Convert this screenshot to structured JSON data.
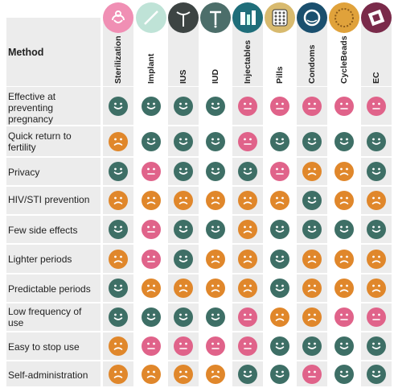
{
  "header": {
    "method_label": "Method"
  },
  "methods": [
    {
      "label": "Sterilization",
      "icon": "sterilization-icon",
      "icon_bg": "#f08fb4"
    },
    {
      "label": "Implant",
      "icon": "implant-icon",
      "icon_bg": "#bfe3d7"
    },
    {
      "label": "IUS",
      "icon": "ius-icon",
      "icon_bg": "#3d4443"
    },
    {
      "label": "IUD",
      "icon": "iud-icon",
      "icon_bg": "#4c6e6a"
    },
    {
      "label": "Injectables",
      "icon": "injectables-icon",
      "icon_bg": "#1f6e7a"
    },
    {
      "label": "Pills",
      "icon": "pills-icon",
      "icon_bg": "#d8ba6e"
    },
    {
      "label": "Condoms",
      "icon": "condoms-icon",
      "icon_bg": "#1a4f6e"
    },
    {
      "label": "CycleBeads",
      "icon": "cyclebeads-icon",
      "icon_bg": "#e0a23b"
    },
    {
      "label": "EC",
      "icon": "ec-icon",
      "icon_bg": "#7a2a4a"
    }
  ],
  "rows": [
    {
      "label": "Effective at preventing pregnancy",
      "ratings": [
        "good",
        "good",
        "good",
        "good",
        "bad",
        "bad",
        "bad",
        "bad",
        "bad"
      ]
    },
    {
      "label": "Quick return to fertility",
      "ratings": [
        "neutral",
        "good",
        "good",
        "good",
        "bad",
        "good",
        "good",
        "good",
        "good"
      ]
    },
    {
      "label": "Privacy",
      "ratings": [
        "good",
        "bad",
        "good",
        "good",
        "good",
        "bad",
        "neutral",
        "neutral",
        "good"
      ]
    },
    {
      "label": "HIV/STI prevention",
      "ratings": [
        "neutral",
        "neutral",
        "neutral",
        "neutral",
        "neutral",
        "neutral",
        "good",
        "neutral",
        "neutral"
      ]
    },
    {
      "label": "Few side effects",
      "ratings": [
        "good",
        "bad",
        "good",
        "good",
        "neutral",
        "good",
        "good",
        "good",
        "good"
      ]
    },
    {
      "label": "Lighter periods",
      "ratings": [
        "neutral",
        "bad",
        "good",
        "neutral",
        "neutral",
        "good",
        "neutral",
        "neutral",
        "neutral"
      ]
    },
    {
      "label": "Predictable periods",
      "ratings": [
        "good",
        "neutral",
        "neutral",
        "neutral",
        "neutral",
        "good",
        "neutral",
        "neutral",
        "neutral"
      ]
    },
    {
      "label": "Low frequency of use",
      "ratings": [
        "good",
        "good",
        "good",
        "good",
        "bad",
        "neutral",
        "neutral",
        "bad",
        "bad"
      ]
    },
    {
      "label": "Easy to stop use",
      "ratings": [
        "neutral",
        "bad",
        "bad",
        "bad",
        "bad",
        "good",
        "good",
        "good",
        "good"
      ]
    },
    {
      "label": "Self-administration",
      "ratings": [
        "neutral",
        "neutral",
        "neutral",
        "neutral",
        "good",
        "good",
        "bad",
        "good",
        "good"
      ]
    }
  ],
  "legend_colors": {
    "good": "#3e6f66",
    "bad": "#e0638a",
    "neutral": "#e0872b"
  }
}
